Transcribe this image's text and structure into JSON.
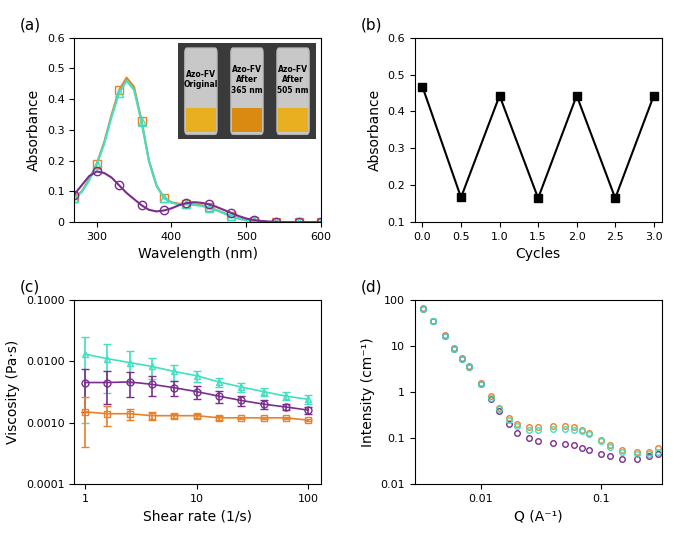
{
  "chart_data": [
    {
      "type": "line",
      "title": "(a)",
      "xlabel": "Wavelength (nm)",
      "ylabel": "Absorbance",
      "x": [
        270,
        280,
        290,
        300,
        310,
        320,
        330,
        340,
        350,
        360,
        370,
        380,
        390,
        400,
        410,
        420,
        430,
        440,
        450,
        460,
        470,
        480,
        490,
        500,
        510,
        520,
        530,
        540,
        550,
        560,
        570,
        580,
        590,
        600
      ],
      "series": [
        {
          "color": "#e8812a",
          "marker": "square",
          "line_style": "solid",
          "values": [
            0.08,
            0.1,
            0.14,
            0.19,
            0.26,
            0.35,
            0.43,
            0.47,
            0.44,
            0.33,
            0.2,
            0.12,
            0.08,
            0.065,
            0.06,
            0.06,
            0.058,
            0.055,
            0.048,
            0.04,
            0.03,
            0.02,
            0.012,
            0.007,
            0.004,
            0.002,
            0.001,
            0.001,
            0,
            0,
            0,
            0,
            0,
            0
          ]
        },
        {
          "color": "#40e0c0",
          "marker": "triangle",
          "line_style": "solid",
          "values": [
            0.078,
            0.098,
            0.137,
            0.186,
            0.255,
            0.343,
            0.42,
            0.46,
            0.43,
            0.325,
            0.197,
            0.118,
            0.078,
            0.063,
            0.058,
            0.058,
            0.056,
            0.053,
            0.046,
            0.039,
            0.029,
            0.019,
            0.011,
            0.006,
            0.004,
            0.002,
            0.001,
            0.001,
            0,
            0,
            0,
            0,
            0,
            0
          ]
        },
        {
          "color": "#7b2d8e",
          "marker": "circle",
          "line_style": "solid",
          "values": [
            0.09,
            0.12,
            0.15,
            0.165,
            0.16,
            0.145,
            0.12,
            0.095,
            0.075,
            0.055,
            0.04,
            0.035,
            0.038,
            0.045,
            0.055,
            0.062,
            0.065,
            0.063,
            0.058,
            0.05,
            0.04,
            0.03,
            0.02,
            0.012,
            0.007,
            0.004,
            0.002,
            0.001,
            0,
            0,
            0,
            0,
            0,
            0
          ]
        }
      ],
      "xlim": [
        270,
        600
      ],
      "xticks": [
        300,
        400,
        500,
        600
      ],
      "ylim": [
        0,
        0.6
      ],
      "yticks": [
        0,
        0.1,
        0.2,
        0.3,
        0.4,
        0.5,
        0.6
      ],
      "annotations": [
        "Azo-FV\nOriginal",
        "Azo-FV\nAfter\n365 nm",
        "Azo-FV\nAfter\n505 nm"
      ]
    },
    {
      "type": "line",
      "title": "(b)",
      "xlabel": "Cycles",
      "ylabel": "Absorbance",
      "x": [
        0,
        0.5,
        1,
        1.5,
        2,
        2.5,
        3
      ],
      "series": [
        {
          "color": "#000000",
          "marker": "square",
          "line_style": "solid",
          "values": [
            0.467,
            0.167,
            0.443,
            0.165,
            0.443,
            0.165,
            0.443
          ]
        }
      ],
      "xlim": [
        -0.1,
        3.1
      ],
      "xticks": [
        {
          "value": 0,
          "label": "0.0"
        },
        0.5,
        {
          "value": 1,
          "label": "1.0"
        },
        1.5,
        {
          "value": 2,
          "label": "2.0"
        },
        2.5,
        {
          "value": 3,
          "label": "3.0"
        }
      ],
      "ylim": [
        0.1,
        0.6
      ],
      "yticks": [
        0.1,
        0.2,
        0.3,
        0.4,
        0.5,
        0.6
      ]
    },
    {
      "type": "line",
      "title": "(c)",
      "xlabel": "Shear rate (1/s)",
      "ylabel": "Viscosity (Pa·s)",
      "log": true,
      "x": [
        1,
        1.58,
        2.51,
        3.98,
        6.31,
        10,
        15.8,
        25.1,
        39.8,
        63.1,
        100
      ],
      "series": [
        {
          "color": "#40e0c0",
          "marker": "triangle",
          "line_style": "solid",
          "values": [
            0.013,
            0.011,
            0.0095,
            0.0082,
            0.0068,
            0.0058,
            0.0046,
            0.0038,
            0.0032,
            0.0027,
            0.0024
          ],
          "errors": [
            0.012,
            0.008,
            0.005,
            0.003,
            0.002,
            0.0012,
            0.0008,
            0.0006,
            0.0005,
            0.0004,
            0.0004
          ]
        },
        {
          "color": "#7b2d8e",
          "marker": "circle",
          "line_style": "solid",
          "values": [
            0.0045,
            0.0045,
            0.0046,
            0.0042,
            0.0037,
            0.0032,
            0.0027,
            0.0023,
            0.002,
            0.0018,
            0.0016
          ],
          "errors": [
            0.003,
            0.0025,
            0.002,
            0.0015,
            0.001,
            0.0008,
            0.0006,
            0.0004,
            0.0003,
            0.0002,
            0.0002
          ]
        },
        {
          "color": "#e8812a",
          "marker": "square",
          "line_style": "solid",
          "values": [
            0.0015,
            0.0014,
            0.0014,
            0.0013,
            0.0013,
            0.0013,
            0.0012,
            0.0012,
            0.0012,
            0.0012,
            0.0011
          ],
          "errors": [
            0.0011,
            0.0005,
            0.0003,
            0.0002,
            0.0001,
            0.0001,
            8e-05,
            6e-05,
            5e-05,
            5e-05,
            4e-05
          ]
        }
      ],
      "xlim": [
        0.8,
        130
      ],
      "xticks": [
        1,
        10,
        100
      ],
      "ylim": [
        0.0001,
        0.1
      ],
      "yticks": [
        0.0001,
        {
          "value": 0.001,
          "label": "0.0010"
        },
        {
          "value": 0.01,
          "label": "0.0100"
        },
        {
          "value": 0.1,
          "label": "0.1000"
        }
      ]
    },
    {
      "type": "scatter",
      "title": "(d)",
      "xlabel": "Q (A⁻¹)",
      "ylabel": "Intensity (cm⁻¹)",
      "log": true,
      "x": [
        0.0033,
        0.004,
        0.005,
        0.006,
        0.007,
        0.008,
        0.01,
        0.012,
        0.014,
        0.017,
        0.02,
        0.025,
        0.03,
        0.04,
        0.05,
        0.06,
        0.07,
        0.08,
        0.1,
        0.12,
        0.15,
        0.2,
        0.25,
        0.3
      ],
      "series": [
        {
          "color": "#e8812a",
          "marker": "circle",
          "values": [
            65,
            35,
            17,
            9,
            5.5,
            3.6,
            1.6,
            0.8,
            0.45,
            0.27,
            0.2,
            0.17,
            0.17,
            0.18,
            0.18,
            0.17,
            0.15,
            0.13,
            0.09,
            0.07,
            0.055,
            0.05,
            0.05,
            0.06
          ]
        },
        {
          "color": "#7b2d8e",
          "marker": "circle",
          "values": [
            62,
            34,
            16.5,
            8.7,
            5.3,
            3.5,
            1.5,
            0.72,
            0.38,
            0.2,
            0.13,
            0.1,
            0.085,
            0.08,
            0.075,
            0.07,
            0.06,
            0.055,
            0.045,
            0.04,
            0.035,
            0.035,
            0.04,
            0.045
          ]
        },
        {
          "color": "#40e0c0",
          "marker": "circle",
          "values": [
            62,
            34,
            16.5,
            8.7,
            5.3,
            3.5,
            1.5,
            0.75,
            0.42,
            0.25,
            0.18,
            0.15,
            0.15,
            0.16,
            0.16,
            0.15,
            0.14,
            0.12,
            0.085,
            0.065,
            0.05,
            0.045,
            0.045,
            0.05
          ]
        }
      ],
      "xlim": [
        0.0028,
        0.32
      ],
      "xticks": [
        0.01,
        0.1
      ],
      "ylim": [
        0.01,
        100
      ],
      "yticks": [
        0.01,
        0.1,
        1,
        10,
        100
      ]
    }
  ]
}
